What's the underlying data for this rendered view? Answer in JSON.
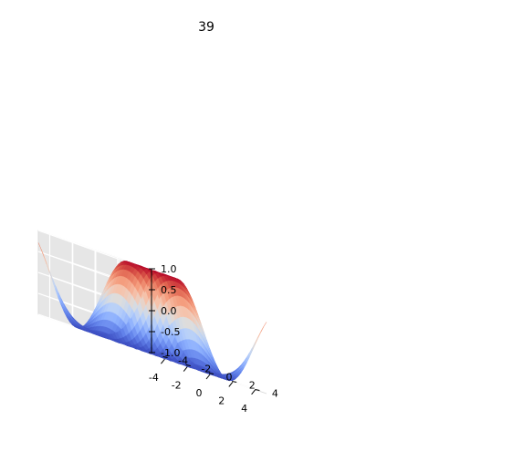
{
  "chart_data": {
    "type": "surface",
    "title": "39",
    "function": "sin(sqrt(x^2 + y^2))",
    "colormap": "coolwarm",
    "xlim": [
      -5,
      5
    ],
    "ylim": [
      -5,
      5
    ],
    "zlim": [
      -1,
      1
    ],
    "x_ticks": [
      "-4",
      "-2",
      "0",
      "2",
      "4"
    ],
    "y_ticks": [
      "-4",
      "-2",
      "0",
      "2",
      "4"
    ],
    "z_ticks": [
      "-1.0",
      "-0.5",
      "0.0",
      "0.5",
      "1.0"
    ],
    "grid": true
  }
}
